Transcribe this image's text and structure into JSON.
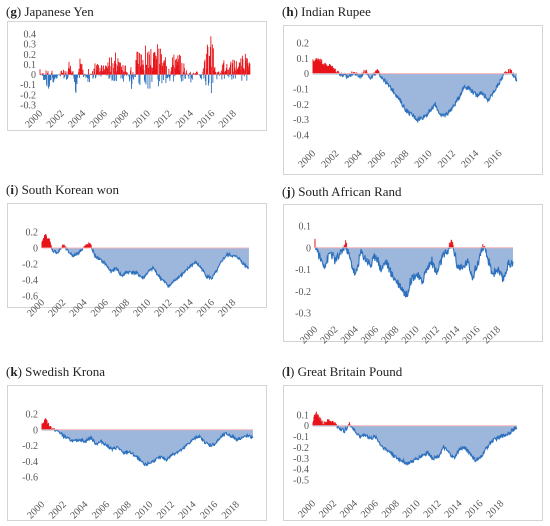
{
  "colors": {
    "positive": "#e8141a",
    "negative_line": "#2b6fbd",
    "negative_fill": "#9cb6dc",
    "frame": "#d4d4d4"
  },
  "chart_data": [
    {
      "type": "area",
      "letter": "g",
      "name": "Japanese Yen",
      "x_ticks": [
        "2000",
        "2002",
        "2004",
        "2006",
        "2008",
        "2010",
        "2012",
        "2014",
        "2016",
        "2018"
      ],
      "y_ticks": [
        0.4,
        0.3,
        0.2,
        0.1,
        0,
        -0.1,
        -0.2,
        -0.3
      ],
      "ylim": [
        -0.3,
        0.4
      ],
      "xlim": [
        2000,
        2019.7
      ],
      "pattern": "spiky",
      "points": [
        [
          2000,
          0.05
        ],
        [
          2000.5,
          -0.15
        ],
        [
          2001,
          -0.1
        ],
        [
          2001.5,
          -0.05
        ],
        [
          2002,
          0.05
        ],
        [
          2002.5,
          0.12
        ],
        [
          2003,
          0.1
        ],
        [
          2003.3,
          -0.22
        ],
        [
          2003.7,
          0.15
        ],
        [
          2004,
          0.08
        ],
        [
          2004.5,
          -0.12
        ],
        [
          2005,
          0.12
        ],
        [
          2005.5,
          0.1
        ],
        [
          2006,
          0.08
        ],
        [
          2006.5,
          0.18
        ],
        [
          2007,
          0.2
        ],
        [
          2007.5,
          0.1
        ],
        [
          2008,
          0.15
        ],
        [
          2008.5,
          -0.2
        ],
        [
          2009,
          0.2
        ],
        [
          2009.5,
          0.2
        ],
        [
          2010,
          0.3
        ],
        [
          2010.5,
          0.18
        ],
        [
          2011,
          0.3
        ],
        [
          2011.5,
          0.15
        ],
        [
          2012,
          0.15
        ],
        [
          2012.5,
          0.2
        ],
        [
          2013,
          0.18
        ],
        [
          2013.5,
          0.1
        ],
        [
          2014,
          -0.12
        ],
        [
          2014.5,
          0.05
        ],
        [
          2015,
          -0.05
        ],
        [
          2015.5,
          0.28
        ],
        [
          2016,
          0.35
        ],
        [
          2016.5,
          -0.12
        ],
        [
          2017,
          0.15
        ],
        [
          2017.5,
          0.08
        ],
        [
          2018,
          0.15
        ],
        [
          2018.5,
          0.12
        ],
        [
          2019,
          0.2
        ],
        [
          2019.5,
          0.1
        ]
      ]
    },
    {
      "type": "area",
      "letter": "h",
      "name": "Indian Rupee",
      "x_ticks": [
        "2000",
        "2002",
        "2004",
        "2006",
        "2008",
        "2010",
        "2012",
        "2014",
        "2016"
      ],
      "y_ticks": [
        0.2,
        0.1,
        0,
        -0.1,
        -0.2,
        -0.3,
        -0.4
      ],
      "ylim": [
        -0.4,
        0.2
      ],
      "xlim": [
        2000,
        2017.6
      ],
      "pattern": "smooth",
      "points": [
        [
          2000,
          0.08
        ],
        [
          2000.5,
          0.1
        ],
        [
          2001,
          0.06
        ],
        [
          2001.5,
          0.05
        ],
        [
          2002,
          0.02
        ],
        [
          2002.5,
          -0.01
        ],
        [
          2003,
          -0.02
        ],
        [
          2003.5,
          0.01
        ],
        [
          2004,
          -0.02
        ],
        [
          2004.5,
          0.02
        ],
        [
          2005,
          -0.03
        ],
        [
          2005.5,
          0.02
        ],
        [
          2006,
          -0.03
        ],
        [
          2006.5,
          -0.08
        ],
        [
          2007,
          -0.12
        ],
        [
          2007.5,
          -0.18
        ],
        [
          2008,
          -0.24
        ],
        [
          2008.5,
          -0.27
        ],
        [
          2009,
          -0.3
        ],
        [
          2009.5,
          -0.28
        ],
        [
          2010,
          -0.25
        ],
        [
          2010.5,
          -0.2
        ],
        [
          2011,
          -0.28
        ],
        [
          2011.5,
          -0.26
        ],
        [
          2012,
          -0.22
        ],
        [
          2012.5,
          -0.16
        ],
        [
          2013,
          -0.08
        ],
        [
          2013.5,
          -0.1
        ],
        [
          2014,
          -0.14
        ],
        [
          2014.5,
          -0.12
        ],
        [
          2015,
          -0.18
        ],
        [
          2015.5,
          -0.12
        ],
        [
          2016,
          -0.06
        ],
        [
          2016.5,
          0.01
        ],
        [
          2017,
          0.02
        ],
        [
          2017.5,
          -0.05
        ]
      ]
    },
    {
      "type": "area",
      "letter": "i",
      "name": "South Korean won",
      "x_ticks": [
        "2000",
        "2002",
        "2004",
        "2006",
        "2008",
        "2010",
        "2012",
        "2014",
        "2016",
        "2018"
      ],
      "y_ticks": [
        0.2,
        0,
        -0.2,
        -0.4,
        -0.6
      ],
      "ylim": [
        -0.6,
        0.2
      ],
      "xlim": [
        2000,
        2019.6
      ],
      "pattern": "smooth",
      "points": [
        [
          2000,
          0.06
        ],
        [
          2000.3,
          0.17
        ],
        [
          2000.7,
          0.1
        ],
        [
          2001,
          -0.03
        ],
        [
          2001.5,
          -0.06
        ],
        [
          2002,
          0.04
        ],
        [
          2002.5,
          -0.05
        ],
        [
          2003,
          -0.1
        ],
        [
          2003.5,
          -0.05
        ],
        [
          2004,
          0.02
        ],
        [
          2004.5,
          0.06
        ],
        [
          2005,
          -0.1
        ],
        [
          2005.5,
          -0.15
        ],
        [
          2006,
          -0.2
        ],
        [
          2006.5,
          -0.3
        ],
        [
          2007,
          -0.25
        ],
        [
          2007.5,
          -0.35
        ],
        [
          2008,
          -0.3
        ],
        [
          2008.5,
          -0.3
        ],
        [
          2009,
          -0.32
        ],
        [
          2009.5,
          -0.38
        ],
        [
          2010,
          -0.3
        ],
        [
          2010.5,
          -0.25
        ],
        [
          2011,
          -0.35
        ],
        [
          2011.5,
          -0.42
        ],
        [
          2012,
          -0.48
        ],
        [
          2012.5,
          -0.4
        ],
        [
          2013,
          -0.35
        ],
        [
          2013.5,
          -0.3
        ],
        [
          2014,
          -0.22
        ],
        [
          2014.5,
          -0.18
        ],
        [
          2015,
          -0.25
        ],
        [
          2015.5,
          -0.35
        ],
        [
          2016,
          -0.38
        ],
        [
          2016.5,
          -0.28
        ],
        [
          2017,
          -0.15
        ],
        [
          2017.5,
          -0.08
        ],
        [
          2018,
          -0.1
        ],
        [
          2018.5,
          -0.12
        ],
        [
          2019,
          -0.2
        ],
        [
          2019.5,
          -0.25
        ]
      ]
    },
    {
      "type": "area",
      "letter": "j",
      "name": "South African Rand",
      "x_ticks": [
        "2000",
        "2002",
        "2004",
        "2006",
        "2008",
        "2010",
        "2012",
        "2014",
        "2016",
        "2018"
      ],
      "y_ticks": [
        0.1,
        0,
        -0.1,
        -0.2,
        -0.3
      ],
      "ylim": [
        -0.3,
        0.1
      ],
      "xlim": [
        2000,
        2019.6
      ],
      "pattern": "noisy",
      "points": [
        [
          2000,
          0.02
        ],
        [
          2000.5,
          -0.05
        ],
        [
          2001,
          -0.08
        ],
        [
          2001.5,
          -0.02
        ],
        [
          2002,
          -0.06
        ],
        [
          2002.5,
          -0.03
        ],
        [
          2003,
          0.02
        ],
        [
          2003.5,
          -0.06
        ],
        [
          2004,
          -0.13
        ],
        [
          2004.5,
          -0.02
        ],
        [
          2005,
          -0.05
        ],
        [
          2005.5,
          -0.08
        ],
        [
          2006,
          -0.03
        ],
        [
          2006.5,
          -0.1
        ],
        [
          2007,
          -0.06
        ],
        [
          2007.5,
          -0.12
        ],
        [
          2008,
          -0.15
        ],
        [
          2008.5,
          -0.18
        ],
        [
          2009,
          -0.22
        ],
        [
          2009.5,
          -0.14
        ],
        [
          2010,
          -0.12
        ],
        [
          2010.5,
          -0.16
        ],
        [
          2011,
          -0.1
        ],
        [
          2011.5,
          -0.06
        ],
        [
          2012,
          -0.12
        ],
        [
          2012.5,
          -0.05
        ],
        [
          2013,
          -0.02
        ],
        [
          2013.5,
          0.03
        ],
        [
          2014,
          -0.08
        ],
        [
          2014.5,
          -0.1
        ],
        [
          2015,
          -0.06
        ],
        [
          2015.5,
          -0.13
        ],
        [
          2016,
          -0.08
        ],
        [
          2016.5,
          0.01
        ],
        [
          2017,
          -0.05
        ],
        [
          2017.5,
          -0.12
        ],
        [
          2018,
          -0.1
        ],
        [
          2018.5,
          -0.15
        ],
        [
          2019,
          -0.08
        ],
        [
          2019.5,
          -0.06
        ]
      ]
    },
    {
      "type": "area",
      "letter": "k",
      "name": "Swedish Krona",
      "x_ticks": [
        "2000",
        "2002",
        "2004",
        "2006",
        "2008",
        "2010",
        "2012",
        "2014",
        "2016",
        "2018"
      ],
      "y_ticks": [
        0.2,
        0,
        -0.2,
        -0.4,
        -0.6
      ],
      "ylim": [
        -0.6,
        0.2
      ],
      "xlim": [
        2000,
        2019.6
      ],
      "pattern": "smooth",
      "points": [
        [
          2000,
          0.06
        ],
        [
          2000.3,
          0.14
        ],
        [
          2000.7,
          0.05
        ],
        [
          2001,
          0.01
        ],
        [
          2001.5,
          -0.02
        ],
        [
          2002,
          -0.08
        ],
        [
          2002.5,
          -0.12
        ],
        [
          2003,
          -0.15
        ],
        [
          2003.5,
          -0.12
        ],
        [
          2004,
          -0.15
        ],
        [
          2004.5,
          -0.1
        ],
        [
          2005,
          -0.18
        ],
        [
          2005.5,
          -0.15
        ],
        [
          2006,
          -0.2
        ],
        [
          2006.5,
          -0.25
        ],
        [
          2007,
          -0.22
        ],
        [
          2007.5,
          -0.3
        ],
        [
          2008,
          -0.28
        ],
        [
          2008.5,
          -0.32
        ],
        [
          2009,
          -0.38
        ],
        [
          2009.5,
          -0.45
        ],
        [
          2010,
          -0.42
        ],
        [
          2010.5,
          -0.38
        ],
        [
          2011,
          -0.35
        ],
        [
          2011.5,
          -0.38
        ],
        [
          2012,
          -0.32
        ],
        [
          2012.5,
          -0.28
        ],
        [
          2013,
          -0.25
        ],
        [
          2013.5,
          -0.18
        ],
        [
          2014,
          -0.12
        ],
        [
          2014.5,
          -0.08
        ],
        [
          2015,
          -0.15
        ],
        [
          2015.5,
          -0.2
        ],
        [
          2016,
          -0.18
        ],
        [
          2016.5,
          -0.1
        ],
        [
          2017,
          -0.05
        ],
        [
          2017.5,
          -0.08
        ],
        [
          2018,
          -0.12
        ],
        [
          2018.5,
          -0.1
        ],
        [
          2019,
          -0.08
        ],
        [
          2019.5,
          -0.1
        ]
      ]
    },
    {
      "type": "area",
      "letter": "l",
      "name": "Great Britain Pound",
      "x_ticks": [
        "2000",
        "2002",
        "2004",
        "2006",
        "2008",
        "2010",
        "2012",
        "2014",
        "2016",
        "2018"
      ],
      "y_ticks": [
        0.1,
        0,
        -0.1,
        -0.2,
        -0.3,
        -0.4,
        -0.5
      ],
      "ylim": [
        -0.5,
        0.2
      ],
      "xlim": [
        2000,
        2019.8
      ],
      "pattern": "smooth",
      "points": [
        [
          2000,
          0.05
        ],
        [
          2000.3,
          0.12
        ],
        [
          2000.7,
          0.06
        ],
        [
          2001,
          0.02
        ],
        [
          2001.5,
          0.05
        ],
        [
          2002,
          0.03
        ],
        [
          2002.5,
          -0.02
        ],
        [
          2003,
          -0.05
        ],
        [
          2003.5,
          0.02
        ],
        [
          2004,
          -0.05
        ],
        [
          2004.5,
          -0.1
        ],
        [
          2005,
          -0.08
        ],
        [
          2005.5,
          -0.12
        ],
        [
          2006,
          -0.1
        ],
        [
          2006.5,
          -0.18
        ],
        [
          2007,
          -0.22
        ],
        [
          2007.5,
          -0.25
        ],
        [
          2008,
          -0.3
        ],
        [
          2008.5,
          -0.32
        ],
        [
          2009,
          -0.35
        ],
        [
          2009.5,
          -0.33
        ],
        [
          2010,
          -0.3
        ],
        [
          2010.5,
          -0.27
        ],
        [
          2011,
          -0.25
        ],
        [
          2011.5,
          -0.3
        ],
        [
          2012,
          -0.28
        ],
        [
          2012.5,
          -0.2
        ],
        [
          2013,
          -0.25
        ],
        [
          2013.5,
          -0.3
        ],
        [
          2014,
          -0.22
        ],
        [
          2014.5,
          -0.2
        ],
        [
          2015,
          -0.25
        ],
        [
          2015.5,
          -0.32
        ],
        [
          2016,
          -0.3
        ],
        [
          2016.5,
          -0.22
        ],
        [
          2017,
          -0.15
        ],
        [
          2017.5,
          -0.12
        ],
        [
          2018,
          -0.1
        ],
        [
          2018.5,
          -0.08
        ],
        [
          2019,
          -0.05
        ],
        [
          2019.5,
          -0.02
        ]
      ]
    }
  ]
}
